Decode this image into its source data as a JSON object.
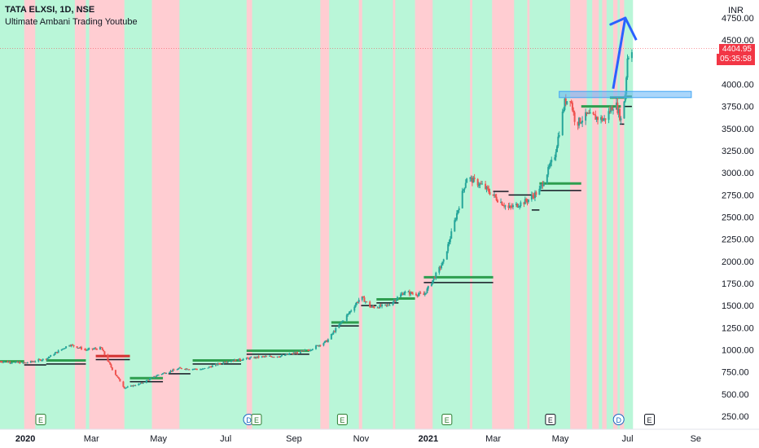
{
  "chart_title": {
    "symbol": "TATA ELXSI, 1D, NSE",
    "indicator": "Ultimate Ambani Trading Youtube",
    "currency": "INR"
  },
  "last_price": {
    "value": "4404.95",
    "countdown": "05:35:58"
  },
  "colors": {
    "up": "#26a69a",
    "down": "#ef5350",
    "bull_zone": "#b9f6d8",
    "bear_zone": "#ffcdd2",
    "level_green": "#2e9e4f",
    "level_red": "#d32f2f",
    "breakout_box": "#64b5f6",
    "arrow": "#2962ff",
    "price_tag": "#f23645"
  },
  "chart_data": {
    "type": "candlestick",
    "title": "TATA ELXSI, 1D, NSE",
    "y_axis": {
      "ylim": [
        200,
        4800
      ],
      "ticks": [
        250,
        500,
        750,
        1000,
        1250,
        1500,
        1750,
        2000,
        2250,
        2500,
        2750,
        3000,
        3250,
        3500,
        3750,
        4000,
        4500,
        4750
      ],
      "tick_labels": [
        "250.00",
        "500.00",
        "750.00",
        "1000.00",
        "1250.00",
        "1500.00",
        "1750.00",
        "2000.00",
        "2250.00",
        "2500.00",
        "2750.00",
        "3000.00",
        "3250.00",
        "3500.00",
        "3750.00",
        "4000.00",
        "4500.00",
        "4750.00"
      ]
    },
    "x_axis": {
      "range": [
        "2019-12-09",
        "2021-09-20"
      ],
      "ticks": [
        {
          "date": "2020-01-01",
          "label": "2020",
          "bold": true
        },
        {
          "date": "2020-03-01",
          "label": "Mar",
          "bold": false
        },
        {
          "date": "2020-05-01",
          "label": "May",
          "bold": false
        },
        {
          "date": "2020-07-01",
          "label": "Jul",
          "bold": false
        },
        {
          "date": "2020-09-01",
          "label": "Sep",
          "bold": false
        },
        {
          "date": "2020-11-01",
          "label": "Nov",
          "bold": false
        },
        {
          "date": "2021-01-01",
          "label": "2021",
          "bold": true
        },
        {
          "date": "2021-03-01",
          "label": "Mar",
          "bold": false
        },
        {
          "date": "2021-05-01",
          "label": "May",
          "bold": false
        },
        {
          "date": "2021-07-01",
          "label": "Jul",
          "bold": false
        },
        {
          "date": "2021-09-01",
          "label": "Se",
          "bold": false
        }
      ]
    },
    "price_path": [
      [
        "2019-12-09",
        870
      ],
      [
        "2019-12-31",
        850
      ],
      [
        "2020-01-20",
        900
      ],
      [
        "2020-02-10",
        1060
      ],
      [
        "2020-02-25",
        1000
      ],
      [
        "2020-03-10",
        1020
      ],
      [
        "2020-03-20",
        780
      ],
      [
        "2020-03-31",
        570
      ],
      [
        "2020-04-15",
        620
      ],
      [
        "2020-05-01",
        720
      ],
      [
        "2020-05-20",
        790
      ],
      [
        "2020-06-10",
        780
      ],
      [
        "2020-07-01",
        870
      ],
      [
        "2020-08-01",
        920
      ],
      [
        "2020-08-20",
        930
      ],
      [
        "2020-09-15",
        1000
      ],
      [
        "2020-10-01",
        1100
      ],
      [
        "2020-10-10",
        1250
      ],
      [
        "2020-10-20",
        1400
      ],
      [
        "2020-11-01",
        1600
      ],
      [
        "2020-11-10",
        1480
      ],
      [
        "2020-11-25",
        1500
      ],
      [
        "2020-12-10",
        1650
      ],
      [
        "2020-12-28",
        1620
      ],
      [
        "2021-01-01",
        1700
      ],
      [
        "2021-01-15",
        2000
      ],
      [
        "2021-01-25",
        2450
      ],
      [
        "2021-02-05",
        2950
      ],
      [
        "2021-02-20",
        2850
      ],
      [
        "2021-03-05",
        2700
      ],
      [
        "2021-03-15",
        2600
      ],
      [
        "2021-03-31",
        2680
      ],
      [
        "2021-04-12",
        2800
      ],
      [
        "2021-04-26",
        3200
      ],
      [
        "2021-05-05",
        3800
      ],
      [
        "2021-05-10",
        3850
      ],
      [
        "2021-05-15",
        3550
      ],
      [
        "2021-05-25",
        3650
      ],
      [
        "2021-06-10",
        3600
      ],
      [
        "2021-06-20",
        3800
      ],
      [
        "2021-06-25",
        3600
      ],
      [
        "2021-06-29",
        3900
      ],
      [
        "2021-07-01",
        4300
      ],
      [
        "2021-07-05",
        4405
      ]
    ],
    "zones_note": "Vertical background zones: green = bullish, red = bearish",
    "bear_zones": [
      [
        "2019-12-31",
        "2020-01-10"
      ],
      [
        "2020-02-15",
        "2020-02-25"
      ],
      [
        "2020-02-28",
        "2020-03-31"
      ],
      [
        "2020-04-25",
        "2020-05-20"
      ],
      [
        "2020-07-20",
        "2020-07-25"
      ],
      [
        "2020-09-25",
        "2020-10-03"
      ],
      [
        "2020-10-30",
        "2020-11-02"
      ],
      [
        "2020-11-30",
        "2020-12-02"
      ],
      [
        "2020-12-20",
        "2021-01-05"
      ],
      [
        "2021-02-08",
        "2021-02-10"
      ],
      [
        "2021-02-28",
        "2021-03-20"
      ],
      [
        "2021-04-01",
        "2021-04-03"
      ],
      [
        "2021-05-10",
        "2021-05-25"
      ],
      [
        "2021-05-30",
        "2021-06-05"
      ],
      [
        "2021-06-08",
        "2021-06-12"
      ],
      [
        "2021-06-18",
        "2021-06-22"
      ],
      [
        "2021-06-24",
        "2021-06-28"
      ]
    ],
    "green_end": "2021-07-06",
    "levels": [
      {
        "from": "2019-12-09",
        "to": "2019-12-31",
        "value": 870,
        "color": "green"
      },
      {
        "from": "2019-12-31",
        "to": "2020-01-20",
        "value": 830,
        "color": "dark"
      },
      {
        "from": "2020-01-20",
        "to": "2020-02-25",
        "value": 880,
        "color": "green"
      },
      {
        "from": "2020-01-20",
        "to": "2020-02-25",
        "value": 840,
        "color": "dark"
      },
      {
        "from": "2020-03-05",
        "to": "2020-04-05",
        "value": 930,
        "color": "red"
      },
      {
        "from": "2020-03-05",
        "to": "2020-04-05",
        "value": 890,
        "color": "dark"
      },
      {
        "from": "2020-04-05",
        "to": "2020-05-05",
        "value": 680,
        "color": "green"
      },
      {
        "from": "2020-04-05",
        "to": "2020-05-05",
        "value": 640,
        "color": "dark"
      },
      {
        "from": "2020-05-10",
        "to": "2020-05-30",
        "value": 730,
        "color": "dark"
      },
      {
        "from": "2020-06-01",
        "to": "2020-07-15",
        "value": 880,
        "color": "green"
      },
      {
        "from": "2020-06-01",
        "to": "2020-07-15",
        "value": 840,
        "color": "dark"
      },
      {
        "from": "2020-07-20",
        "to": "2020-09-15",
        "value": 990,
        "color": "green"
      },
      {
        "from": "2020-07-20",
        "to": "2020-09-15",
        "value": 950,
        "color": "dark"
      },
      {
        "from": "2020-10-05",
        "to": "2020-10-30",
        "value": 1310,
        "color": "green"
      },
      {
        "from": "2020-10-05",
        "to": "2020-10-30",
        "value": 1270,
        "color": "dark"
      },
      {
        "from": "2020-11-01",
        "to": "2020-11-15",
        "value": 1500,
        "color": "dark"
      },
      {
        "from": "2020-11-15",
        "to": "2020-12-05",
        "value": 1570,
        "color": "green"
      },
      {
        "from": "2020-11-15",
        "to": "2020-12-05",
        "value": 1530,
        "color": "dark"
      },
      {
        "from": "2020-12-05",
        "to": "2020-12-20",
        "value": 1580,
        "color": "green"
      },
      {
        "from": "2020-12-28",
        "to": "2021-03-01",
        "value": 1820,
        "color": "green"
      },
      {
        "from": "2020-12-28",
        "to": "2021-03-01",
        "value": 1760,
        "color": "dark"
      },
      {
        "from": "2021-03-01",
        "to": "2021-03-15",
        "value": 2790,
        "color": "dark"
      },
      {
        "from": "2021-03-15",
        "to": "2021-04-05",
        "value": 2750,
        "color": "dark"
      },
      {
        "from": "2021-04-05",
        "to": "2021-04-12",
        "value": 2580,
        "color": "dark"
      },
      {
        "from": "2021-04-12",
        "to": "2021-05-20",
        "value": 2880,
        "color": "green"
      },
      {
        "from": "2021-04-12",
        "to": "2021-05-20",
        "value": 2800,
        "color": "dark"
      },
      {
        "from": "2021-05-20",
        "to": "2021-06-25",
        "value": 3750,
        "color": "green"
      },
      {
        "from": "2021-06-15",
        "to": "2021-06-28",
        "value": 3850,
        "color": "green"
      },
      {
        "from": "2021-06-24",
        "to": "2021-06-28",
        "value": 3550,
        "color": "dark"
      },
      {
        "from": "2021-06-28",
        "to": "2021-07-05",
        "value": 3860,
        "color": "green"
      },
      {
        "from": "2021-06-28",
        "to": "2021-07-05",
        "value": 3750,
        "color": "dark"
      }
    ],
    "breakout_box": {
      "from": "2021-04-30",
      "to": "2021-08-28",
      "low": 3850,
      "high": 3920
    },
    "arrow": {
      "from": [
        "2021-06-18",
        3950
      ],
      "to": [
        "2021-06-29",
        4750
      ],
      "head_end": [
        "2021-07-09",
        4500
      ]
    },
    "events": [
      {
        "date": "2020-01-15",
        "label": "E",
        "color": "#2e7d32"
      },
      {
        "date": "2020-07-22",
        "label": "D",
        "color": "#1565c0"
      },
      {
        "date": "2020-07-29",
        "label": "E",
        "color": "#2e7d32"
      },
      {
        "date": "2020-10-15",
        "label": "E",
        "color": "#2e7d32"
      },
      {
        "date": "2021-01-18",
        "label": "E",
        "color": "#2e7d32"
      },
      {
        "date": "2021-04-22",
        "label": "E",
        "color": "#131722"
      },
      {
        "date": "2021-06-23",
        "label": "D",
        "color": "#1565c0"
      },
      {
        "date": "2021-07-21",
        "label": "E",
        "color": "#131722"
      }
    ],
    "last_price": 4404.95,
    "grid": false
  }
}
